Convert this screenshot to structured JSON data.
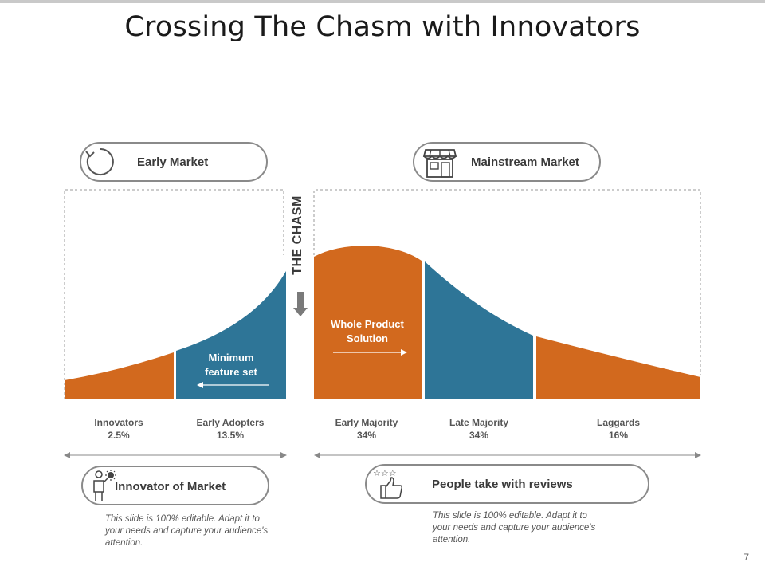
{
  "title": "Crossing The Chasm with Innovators",
  "early_market": {
    "label": "Early Market",
    "icon": "refresh-icon"
  },
  "mainstream_market": {
    "label": "Mainstream Market",
    "icon": "store-icon"
  },
  "chasm_label": "THE CHASM",
  "segments": [
    {
      "name": "Innovators",
      "share": "2.5%",
      "color": "#d2691e"
    },
    {
      "name": "Early Adopters",
      "share": "13.5%",
      "color": "#2e7597"
    },
    {
      "name": "Early Majority",
      "share": "34%",
      "color": "#d2691e"
    },
    {
      "name": "Late Majority",
      "share": "34%",
      "color": "#2e7597"
    },
    {
      "name": "Laggards",
      "share": "16%",
      "color": "#d2691e"
    }
  ],
  "inner_labels": {
    "min_feature": "Minimum feature set",
    "whole_product": "Whole Product Solution"
  },
  "bottom_left": {
    "label": "Innovator of Market",
    "icon": "innovator-person-icon",
    "description": "This slide is 100% editable. Adapt it to your needs and capture your audience's attention."
  },
  "bottom_right": {
    "label": "People take with reviews",
    "icon": "thumbs-up-stars-icon",
    "description": "This slide is 100% editable. Adapt it to your needs and capture your audience's attention."
  },
  "page_number": "7"
}
